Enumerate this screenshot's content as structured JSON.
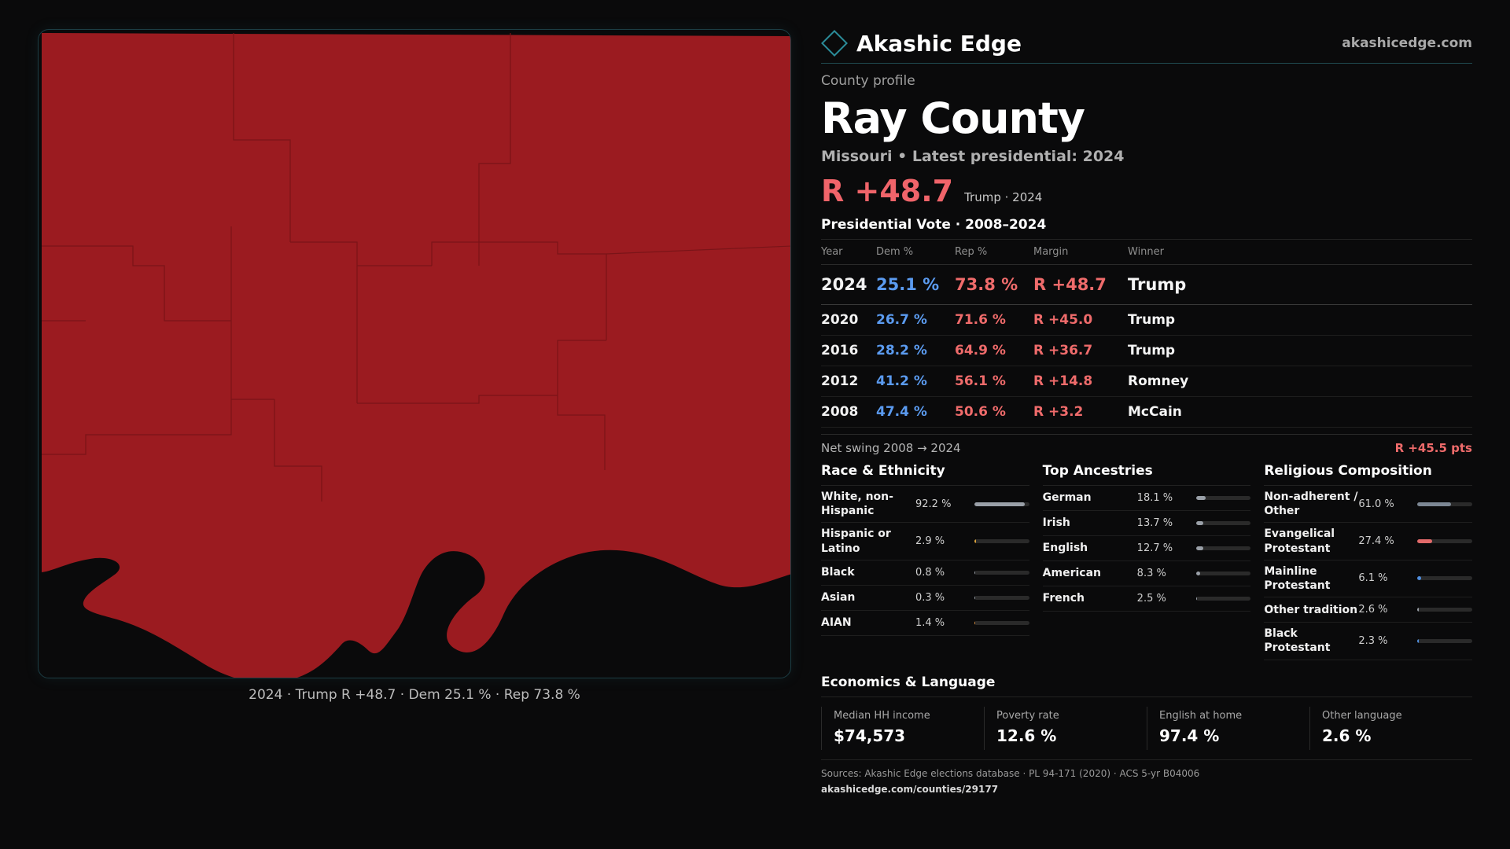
{
  "brand": {
    "name": "Akashic Edge",
    "url": "akashicedge.com"
  },
  "profile": {
    "kicker": "County profile",
    "title": "Ray County",
    "subtitle": "Missouri • Latest presidential: 2024",
    "headline_margin": "R +48.7",
    "headline_note": "Trump · 2024"
  },
  "map": {
    "caption": "2024 · Trump R +48.7 · Dem 25.1 % · Rep 73.8 %",
    "fill_color": "#9b1b20",
    "border_color": "#7a1418"
  },
  "votes": {
    "title": "Presidential Vote · 2008–2024",
    "headers": [
      "Year",
      "Dem %",
      "Rep %",
      "Margin",
      "Winner"
    ],
    "rows": [
      {
        "year": "2024",
        "dem": "25.1 %",
        "rep": "73.8 %",
        "margin": "R +48.7",
        "winner": "Trump"
      },
      {
        "year": "2020",
        "dem": "26.7 %",
        "rep": "71.6 %",
        "margin": "R +45.0",
        "winner": "Trump"
      },
      {
        "year": "2016",
        "dem": "28.2 %",
        "rep": "64.9 %",
        "margin": "R +36.7",
        "winner": "Trump"
      },
      {
        "year": "2012",
        "dem": "41.2 %",
        "rep": "56.1 %",
        "margin": "R +14.8",
        "winner": "Romney"
      },
      {
        "year": "2008",
        "dem": "47.4 %",
        "rep": "50.6 %",
        "margin": "R +3.2",
        "winner": "McCain"
      }
    ],
    "swing_label": "Net swing 2008 → 2024",
    "swing_value": "R +45.5 pts"
  },
  "demographics": [
    {
      "title": "Race & Ethnicity",
      "items": [
        {
          "label": "White, non-Hispanic",
          "value": "92.2 %",
          "share": 92.2,
          "color": "#9aa0a8"
        },
        {
          "label": "Hispanic or Latino",
          "value": "2.9 %",
          "share": 2.9,
          "color": "#d9a13b"
        },
        {
          "label": "Black",
          "value": "0.8 %",
          "share": 0.8,
          "color": "#9aa0a8"
        },
        {
          "label": "Asian",
          "value": "0.3 %",
          "share": 0.3,
          "color": "#9aa0a8"
        },
        {
          "label": "AIAN",
          "value": "1.4 %",
          "share": 1.4,
          "color": "#d98a3b"
        }
      ]
    },
    {
      "title": "Top Ancestries",
      "items": [
        {
          "label": "German",
          "value": "18.1 %",
          "share": 18.1,
          "color": "#9aa0a8"
        },
        {
          "label": "Irish",
          "value": "13.7 %",
          "share": 13.7,
          "color": "#9aa0a8"
        },
        {
          "label": "English",
          "value": "12.7 %",
          "share": 12.7,
          "color": "#9aa0a8"
        },
        {
          "label": "American",
          "value": "8.3 %",
          "share": 8.3,
          "color": "#9aa0a8"
        },
        {
          "label": "French",
          "value": "2.5 %",
          "share": 2.5,
          "color": "#9aa0a8"
        }
      ]
    },
    {
      "title": "Religious Composition",
      "items": [
        {
          "label": "Non-adherent / Other",
          "value": "61.0 %",
          "share": 61.0,
          "color": "#7c8794"
        },
        {
          "label": "Evangelical Protestant",
          "value": "27.4 %",
          "share": 27.4,
          "color": "#e26a6a"
        },
        {
          "label": "Mainline Protestant",
          "value": "6.1 %",
          "share": 6.1,
          "color": "#4f8fe0"
        },
        {
          "label": "Other tradition",
          "value": "2.6 %",
          "share": 2.6,
          "color": "#9aa0a8"
        },
        {
          "label": "Black Protestant",
          "value": "2.3 %",
          "share": 2.3,
          "color": "#4f8fe0"
        }
      ]
    }
  ],
  "economics": {
    "title": "Economics & Language",
    "cards": [
      {
        "label": "Median HH income",
        "value": "$74,573"
      },
      {
        "label": "Poverty rate",
        "value": "12.6 %"
      },
      {
        "label": "English at home",
        "value": "97.4 %"
      },
      {
        "label": "Other language",
        "value": "2.6 %"
      }
    ]
  },
  "sources": {
    "text": "Sources: Akashic Edge elections database · PL 94-171 (2020) · ACS 5-yr B04006",
    "url": "akashicedge.com/counties/29177"
  }
}
